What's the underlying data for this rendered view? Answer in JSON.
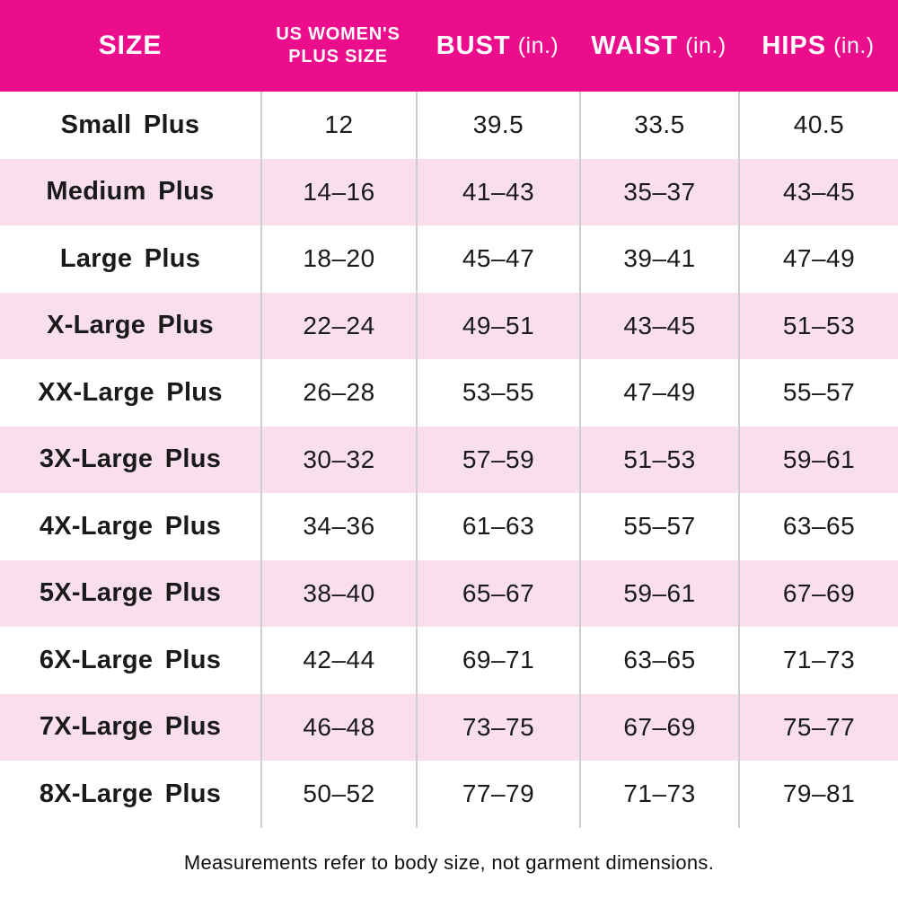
{
  "colors": {
    "header_bg": "#EB0D8C",
    "row_alt_bg": "#F9DEEE",
    "text": "#1A1A1A",
    "divider": "#CFCFCF"
  },
  "header": {
    "size": "SIZE",
    "plus_line1": "US WOMEN'S",
    "plus_line2": "PLUS SIZE",
    "bust": "BUST",
    "bust_unit": "(in.)",
    "waist": "WAIST",
    "waist_unit": "(in.)",
    "hips": "HIPS",
    "hips_unit": "(in.)"
  },
  "chart_data": {
    "type": "table",
    "columns": [
      "SIZE",
      "US WOMEN'S PLUS SIZE",
      "BUST (in.)",
      "WAIST (in.)",
      "HIPS (in.)"
    ],
    "rows": [
      {
        "size": "Small Plus",
        "plus": "12",
        "bust": "39.5",
        "waist": "33.5",
        "hips": "40.5"
      },
      {
        "size": "Medium Plus",
        "plus": "14–16",
        "bust": "41–43",
        "waist": "35–37",
        "hips": "43–45"
      },
      {
        "size": "Large Plus",
        "plus": "18–20",
        "bust": "45–47",
        "waist": "39–41",
        "hips": "47–49"
      },
      {
        "size": "X-Large Plus",
        "plus": "22–24",
        "bust": "49–51",
        "waist": "43–45",
        "hips": "51–53"
      },
      {
        "size": "XX-Large Plus",
        "plus": "26–28",
        "bust": "53–55",
        "waist": "47–49",
        "hips": "55–57"
      },
      {
        "size": "3X-Large Plus",
        "plus": "30–32",
        "bust": "57–59",
        "waist": "51–53",
        "hips": "59–61"
      },
      {
        "size": "4X-Large Plus",
        "plus": "34–36",
        "bust": "61–63",
        "waist": "55–57",
        "hips": "63–65"
      },
      {
        "size": "5X-Large Plus",
        "plus": "38–40",
        "bust": "65–67",
        "waist": "59–61",
        "hips": "67–69"
      },
      {
        "size": "6X-Large Plus",
        "plus": "42–44",
        "bust": "69–71",
        "waist": "63–65",
        "hips": "71–73"
      },
      {
        "size": "7X-Large Plus",
        "plus": "46–48",
        "bust": "73–75",
        "waist": "67–69",
        "hips": "75–77"
      },
      {
        "size": "8X-Large Plus",
        "plus": "50–52",
        "bust": "77–79",
        "waist": "71–73",
        "hips": "79–81"
      }
    ]
  },
  "footer": {
    "note": "Measurements refer to body size, not garment dimensions."
  }
}
